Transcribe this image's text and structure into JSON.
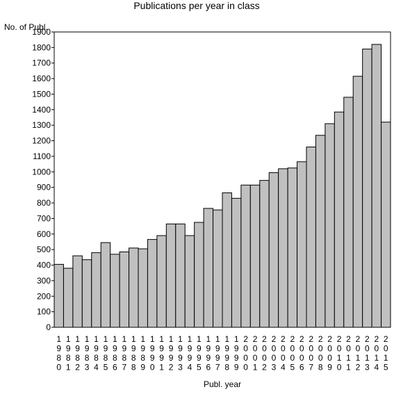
{
  "chart_data": {
    "type": "bar",
    "title": "Publications per year in class",
    "xlabel": "Publ. year",
    "ylabel": "No. of Publ.",
    "ylim": [
      0,
      1900
    ],
    "yticks": [
      0,
      100,
      200,
      300,
      400,
      500,
      600,
      700,
      800,
      900,
      1000,
      1100,
      1200,
      1300,
      1400,
      1500,
      1600,
      1700,
      1800,
      1900
    ],
    "bar_color": "#c0c0c0",
    "categories": [
      "1980",
      "1981",
      "1982",
      "1983",
      "1984",
      "1985",
      "1986",
      "1987",
      "1988",
      "1989",
      "1990",
      "1991",
      "1992",
      "1993",
      "1994",
      "1995",
      "1996",
      "1997",
      "1998",
      "1999",
      "2000",
      "2001",
      "2002",
      "2003",
      "2004",
      "2005",
      "2006",
      "2007",
      "2008",
      "2009",
      "2010",
      "2011",
      "2012",
      "2013",
      "2014",
      "2015"
    ],
    "values": [
      405,
      380,
      460,
      435,
      480,
      545,
      470,
      485,
      510,
      505,
      565,
      590,
      665,
      665,
      590,
      675,
      765,
      755,
      865,
      830,
      915,
      915,
      945,
      995,
      1020,
      1025,
      1065,
      1160,
      1235,
      1310,
      1385,
      1480,
      1615,
      1790,
      1820,
      1320
    ]
  }
}
